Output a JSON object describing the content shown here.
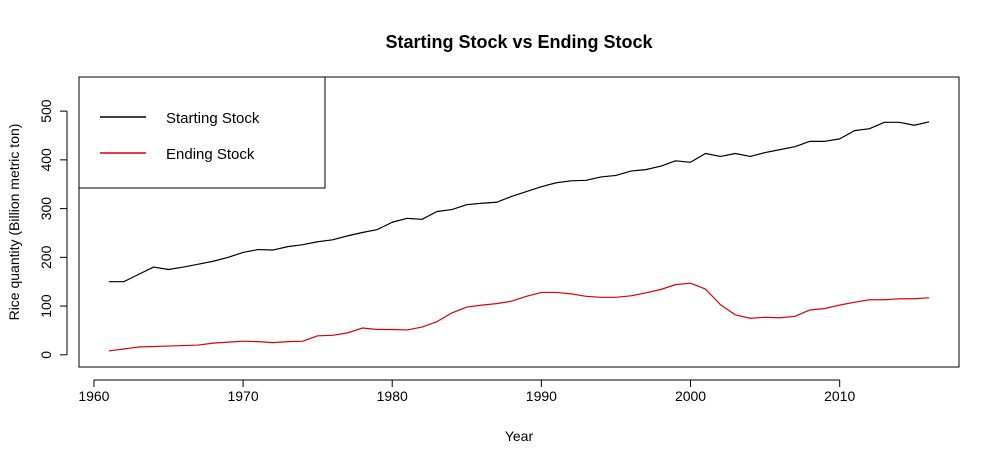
{
  "chart_data": {
    "type": "line",
    "title": "Starting Stock vs Ending Stock",
    "xlabel": "Year",
    "ylabel": "Rice quantity (Billion metric ton)",
    "xlim": [
      1959,
      2018
    ],
    "ylim": [
      -25,
      570
    ],
    "x_ticks": [
      1960,
      1970,
      1980,
      1990,
      2000,
      2010
    ],
    "y_ticks": [
      0,
      100,
      200,
      300,
      400,
      500
    ],
    "grid": false,
    "legend_position": "top-left",
    "x": [
      1961,
      1962,
      1963,
      1964,
      1965,
      1966,
      1967,
      1968,
      1969,
      1970,
      1971,
      1972,
      1973,
      1974,
      1975,
      1976,
      1977,
      1978,
      1979,
      1980,
      1981,
      1982,
      1983,
      1984,
      1985,
      1986,
      1987,
      1988,
      1989,
      1990,
      1991,
      1992,
      1993,
      1994,
      1995,
      1996,
      1997,
      1998,
      1999,
      2000,
      2001,
      2002,
      2003,
      2004,
      2005,
      2006,
      2007,
      2008,
      2009,
      2010,
      2011,
      2012,
      2013,
      2014,
      2015,
      2016
    ],
    "series": [
      {
        "name": "Starting Stock",
        "color": "#000000",
        "values": [
          150,
          150,
          165,
          180,
          175,
          180,
          186,
          192,
          200,
          210,
          216,
          215,
          222,
          226,
          232,
          236,
          244,
          251,
          257,
          272,
          280,
          278,
          294,
          298,
          308,
          311,
          313,
          325,
          335,
          345,
          353,
          357,
          358,
          365,
          368,
          377,
          380,
          387,
          398,
          395,
          413,
          407,
          413,
          407,
          415,
          421,
          427,
          438,
          438,
          443,
          460,
          464,
          477,
          477,
          471,
          478
        ]
      },
      {
        "name": "Ending Stock",
        "color": "#dd0000",
        "values": [
          8,
          12,
          16,
          17,
          18,
          19,
          20,
          24,
          26,
          28,
          27,
          25,
          27,
          28,
          39,
          40,
          45,
          55,
          52,
          52,
          51,
          57,
          68,
          86,
          98,
          102,
          105,
          110,
          120,
          128,
          128,
          125,
          120,
          118,
          118,
          121,
          127,
          134,
          144,
          147,
          135,
          103,
          82,
          75,
          77,
          76,
          79,
          92,
          95,
          102,
          108,
          113,
          113,
          115,
          115,
          117
        ]
      }
    ]
  }
}
